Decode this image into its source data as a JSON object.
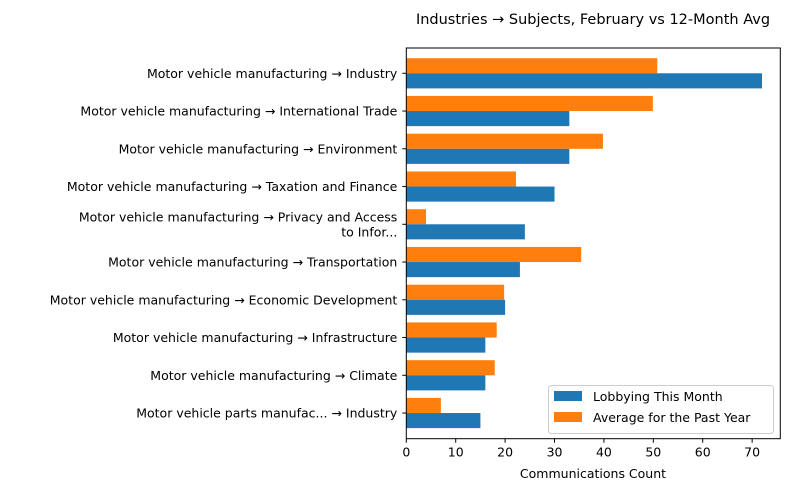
{
  "chart_data": {
    "type": "bar",
    "orientation": "horizontal",
    "title": "Industries → Subjects, February vs 12-Month Avg",
    "xlabel": "Communications Count",
    "ylabel": "",
    "xlim": [
      0,
      75.7
    ],
    "xticks": [
      0,
      10,
      20,
      30,
      40,
      50,
      60,
      70
    ],
    "grid": false,
    "legend_position": "lower right",
    "categories": [
      "Motor vehicle manufacturing → Industry",
      "Motor vehicle manufacturing → International Trade",
      "Motor vehicle manufacturing → Environment",
      "Motor vehicle manufacturing → Taxation and Finance",
      "Motor vehicle manufacturing → Privacy and Access\nto Infor...",
      "Motor vehicle manufacturing → Transportation",
      "Motor vehicle manufacturing → Economic Development",
      "Motor vehicle manufacturing → Infrastructure",
      "Motor vehicle manufacturing → Climate",
      "Motor vehicle parts manufac... → Industry"
    ],
    "series": [
      {
        "name": "Lobbying This Month",
        "color": "#1f77b4",
        "values": [
          72,
          33,
          33,
          30,
          24,
          23,
          20,
          16,
          16,
          15
        ]
      },
      {
        "name": "Average for the Past Year",
        "color": "#ff7f0e",
        "values": [
          50.8,
          49.9,
          39.8,
          22.2,
          4,
          35.4,
          19.8,
          18.3,
          17.9,
          7
        ]
      }
    ]
  }
}
